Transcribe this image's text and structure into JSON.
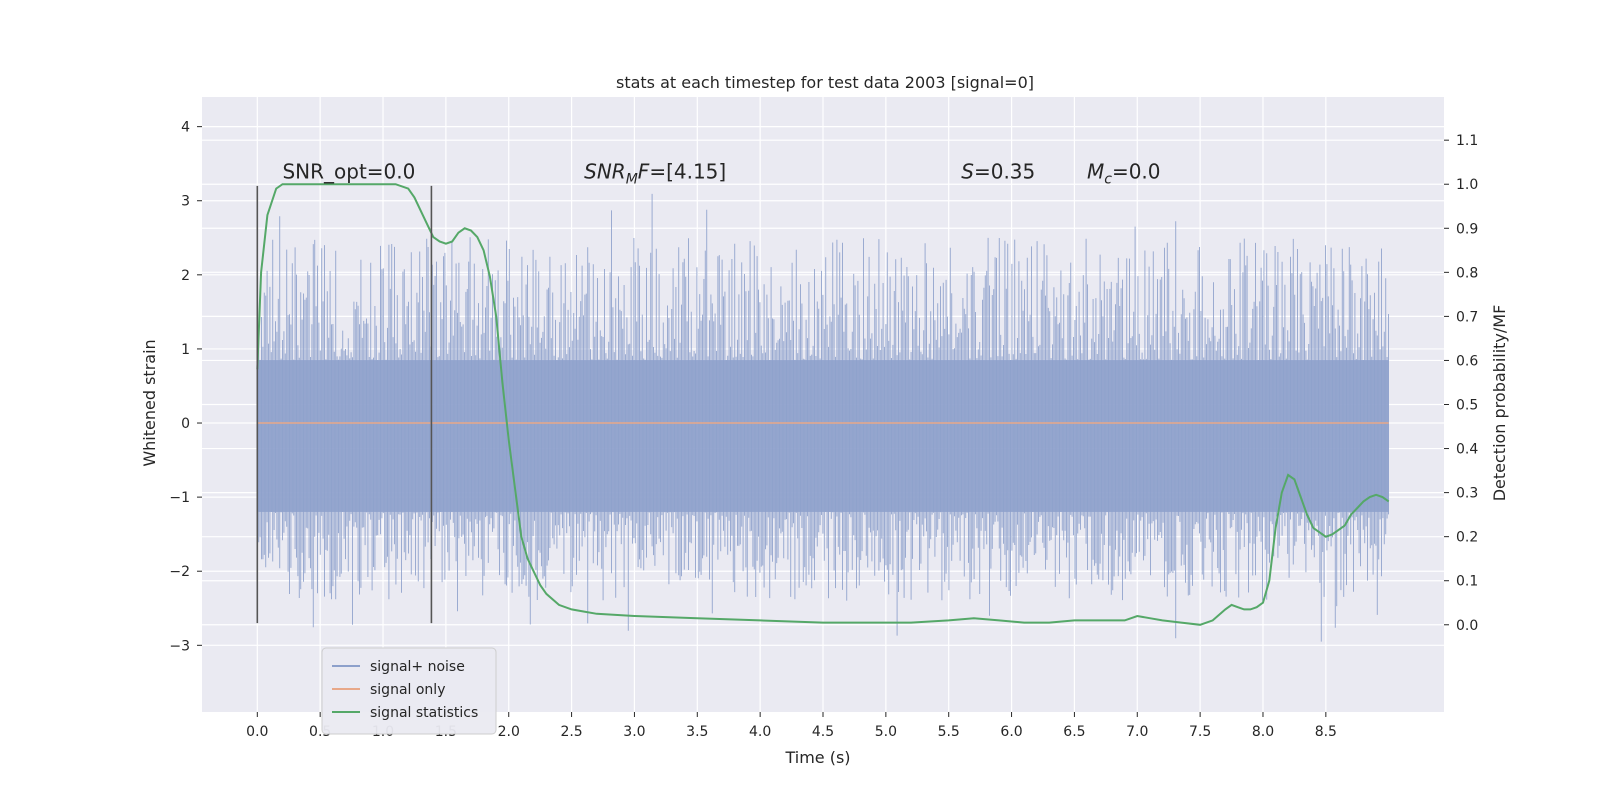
{
  "chart_data": {
    "type": "line",
    "title": "stats at each timestep for test data 2003 [signal=0]",
    "xlabel": "Time (s)",
    "ylabel": "Whitened strain",
    "y2label": "Detection probability/MF",
    "xlim": [
      -0.44,
      9.44
    ],
    "ylim": [
      -3.9,
      4.4
    ],
    "y2lim": [
      -0.198,
      1.198
    ],
    "x_ticks": [
      "0.0",
      "0.5",
      "1.0",
      "1.5",
      "2.0",
      "2.5",
      "3.0",
      "3.5",
      "4.0",
      "4.5",
      "5.0",
      "5.5",
      "6.0",
      "6.5",
      "7.0",
      "7.5",
      "8.0",
      "8.5"
    ],
    "y_ticks": [
      "4",
      "3",
      "2",
      "1",
      "0",
      "−1",
      "−2",
      "−3"
    ],
    "y2_ticks": [
      "1.1",
      "1.0",
      "0.9",
      "0.8",
      "0.7",
      "0.6",
      "0.5",
      "0.4",
      "0.3",
      "0.2",
      "0.1",
      "0.0"
    ],
    "grid": true,
    "legend_position": "lower-left",
    "annotations": [
      {
        "text": "SNR_opt=0.0",
        "x": 0.2,
        "y": 3.3
      },
      {
        "text": "SNR_MF=[4.15]",
        "x": 2.6,
        "y": 3.3
      },
      {
        "text": "S=0.35",
        "x": 5.6,
        "y": 3.3
      },
      {
        "text": "M_c=0.0",
        "x": 6.6,
        "y": 3.3
      }
    ],
    "vertical_markers": [
      {
        "x": 0.0,
        "y_from": -2.7,
        "y_to": 3.2
      },
      {
        "x": 1.385,
        "y_from": -2.7,
        "y_to": 3.2
      }
    ],
    "series": [
      {
        "name": "signal+ noise",
        "color": "#8da0cb",
        "style": "dense noise band",
        "x_range": [
          0.0,
          9.0
        ],
        "core_band": [
          -1.2,
          0.85
        ],
        "peak_max": 4.0,
        "peak_min": -3.5
      },
      {
        "name": "signal only",
        "color": "#e8a889",
        "x": [
          0.0,
          9.0
        ],
        "values": [
          0.0,
          0.0
        ]
      },
      {
        "name": "signal statistics",
        "color": "#55a868",
        "axis": "right",
        "x": [
          0.0,
          0.03,
          0.08,
          0.15,
          0.2,
          0.3,
          0.5,
          0.8,
          1.0,
          1.1,
          1.2,
          1.25,
          1.3,
          1.35,
          1.4,
          1.45,
          1.5,
          1.55,
          1.6,
          1.65,
          1.7,
          1.75,
          1.8,
          1.85,
          1.9,
          1.95,
          2.0,
          2.05,
          2.1,
          2.15,
          2.2,
          2.25,
          2.3,
          2.4,
          2.5,
          2.6,
          2.7,
          3.0,
          3.5,
          4.0,
          4.5,
          5.0,
          5.2,
          5.5,
          5.7,
          5.9,
          6.1,
          6.3,
          6.5,
          6.7,
          6.9,
          7.0,
          7.1,
          7.2,
          7.35,
          7.5,
          7.6,
          7.7,
          7.75,
          7.8,
          7.85,
          7.9,
          7.95,
          8.0,
          8.05,
          8.1,
          8.15,
          8.2,
          8.25,
          8.3,
          8.35,
          8.4,
          8.45,
          8.5,
          8.55,
          8.6,
          8.65,
          8.7,
          8.75,
          8.8,
          8.85,
          8.9,
          8.95,
          9.0
        ],
        "values": [
          0.58,
          0.8,
          0.93,
          0.99,
          1.0,
          1.0,
          1.0,
          1.0,
          1.0,
          1.0,
          0.99,
          0.97,
          0.94,
          0.91,
          0.88,
          0.87,
          0.865,
          0.87,
          0.89,
          0.9,
          0.895,
          0.88,
          0.85,
          0.79,
          0.7,
          0.55,
          0.42,
          0.31,
          0.2,
          0.15,
          0.12,
          0.09,
          0.07,
          0.045,
          0.035,
          0.03,
          0.025,
          0.02,
          0.015,
          0.01,
          0.005,
          0.005,
          0.005,
          0.01,
          0.015,
          0.01,
          0.005,
          0.005,
          0.01,
          0.01,
          0.01,
          0.02,
          0.015,
          0.01,
          0.005,
          0.0,
          0.01,
          0.035,
          0.045,
          0.04,
          0.035,
          0.035,
          0.04,
          0.05,
          0.1,
          0.22,
          0.3,
          0.34,
          0.33,
          0.29,
          0.25,
          0.22,
          0.21,
          0.2,
          0.205,
          0.215,
          0.225,
          0.25,
          0.265,
          0.28,
          0.29,
          0.295,
          0.29,
          0.28
        ]
      }
    ],
    "legend": [
      "signal+ noise",
      "signal only",
      "signal statistics"
    ]
  }
}
